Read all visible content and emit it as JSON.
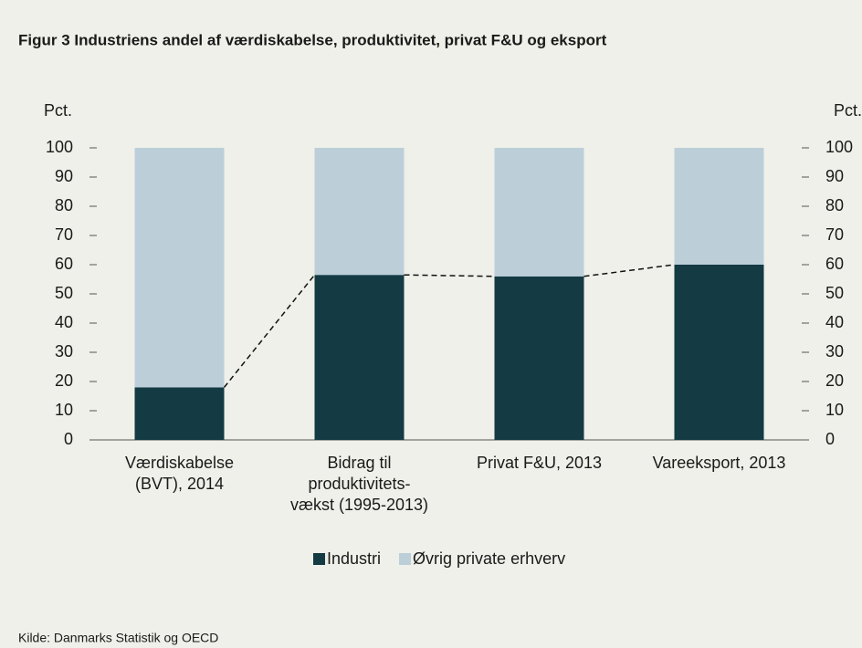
{
  "chart_data": {
    "type": "stacked_bar",
    "title": "Figur 3 Industriens andel af værdiskabelse, produktivitet, privat F&U og eksport",
    "y_label": "Pct.",
    "y2_label": "Pct.",
    "categories": [
      "Værdiskabelse\n(BVT), 2014",
      "Bidrag til\nproduktivitets-\nvækst (1995-2013)",
      "Privat F&U, 2013",
      "Vareeksport, 2013"
    ],
    "series": [
      {
        "name": "Industri",
        "color": "#143a44",
        "values": [
          18,
          56.5,
          56,
          60
        ]
      },
      {
        "name": "Øvrig private erhverv",
        "color": "#bccfd9",
        "values": [
          82,
          43.5,
          44,
          40
        ]
      }
    ],
    "connector_lines": true,
    "ylim": [
      0,
      100
    ],
    "yticks": [
      0,
      10,
      20,
      30,
      40,
      50,
      60,
      70,
      80,
      90,
      100
    ],
    "y2lim": [
      0,
      100
    ],
    "y2ticks": [
      0,
      10,
      20,
      30,
      40,
      50,
      60,
      70,
      80,
      90,
      100
    ],
    "legend": "bottom",
    "source": "Kilde: Danmarks Statistik og OECD"
  }
}
